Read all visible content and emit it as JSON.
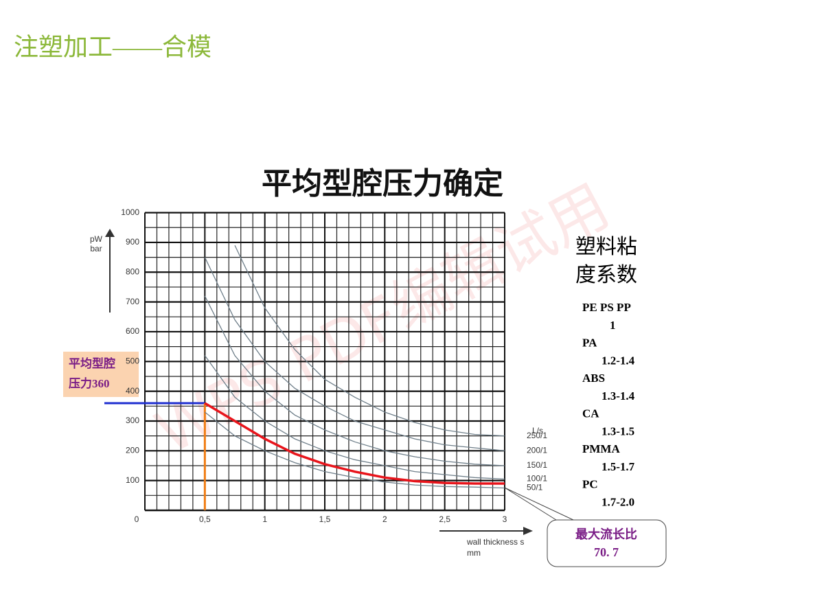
{
  "slide_title": "注塑加工——合模",
  "watermark": "WPS PDF编辑试用",
  "chart_data": {
    "type": "line",
    "title": "平均型腔压力确定",
    "y_label": [
      "pW",
      "bar"
    ],
    "x_label": [
      "wall thickness s",
      "mm"
    ],
    "series_header": "L/s",
    "x": [
      0.5,
      0.75,
      1,
      1.25,
      1.5,
      1.75,
      2,
      2.25,
      2.5,
      2.75,
      3
    ],
    "series": [
      {
        "name": "250/1",
        "color": "#6f7f8a",
        "values": [
          null,
          890,
          680,
          540,
          440,
          380,
          330,
          295,
          270,
          255,
          250
        ]
      },
      {
        "name": "200/1",
        "color": "#6f7f8a",
        "values": [
          850,
          640,
          500,
          410,
          350,
          300,
          270,
          240,
          220,
          210,
          200
        ]
      },
      {
        "name": "150/1",
        "color": "#6f7f8a",
        "values": [
          720,
          520,
          400,
          320,
          270,
          230,
          200,
          180,
          165,
          155,
          150
        ]
      },
      {
        "name": "100/1",
        "color": "#6f7f8a",
        "values": [
          520,
          380,
          300,
          240,
          200,
          170,
          150,
          130,
          120,
          110,
          105
        ]
      },
      {
        "name": "50/1",
        "color": "#6f7f8a",
        "values": [
          330,
          250,
          200,
          160,
          130,
          110,
          95,
          85,
          80,
          78,
          75
        ]
      },
      {
        "color": "#e8141b",
        "values": [
          360,
          300,
          240,
          190,
          155,
          130,
          110,
          98,
          92,
          90,
          90
        ]
      }
    ],
    "xlim": [
      0,
      3
    ],
    "ylim": [
      0,
      1000
    ],
    "xticks": [
      0,
      {
        "value": 0.5,
        "label": "0,5"
      },
      1,
      {
        "value": 1.5,
        "label": "1,5"
      },
      2,
      {
        "value": 2.5,
        "label": "2,5"
      },
      3
    ],
    "yticks": [
      100,
      200,
      300,
      400,
      500,
      600,
      700,
      800,
      900,
      1000
    ],
    "grid": true,
    "minor_grid": true,
    "annotations": {
      "pressure": 360,
      "pressure_color": "#1f2fd0",
      "thickness": 0.5,
      "thickness_color": "#f07c12",
      "pressure_box": [
        "平均型腔",
        "压力360"
      ],
      "flow_box": [
        "最大流长比",
        "70. 7"
      ]
    },
    "viscosity_title": [
      "塑料粘",
      "度系数"
    ],
    "materials": [
      {
        "name": "PE PS PP",
        "range": "1"
      },
      {
        "name": "PA",
        "range": "1.2-1.4"
      },
      {
        "name": "ABS",
        "range": "1.3-1.4"
      },
      {
        "name": "CA",
        "range": "1.3-1.5"
      },
      {
        "name": "PMMA",
        "range": "1.5-1.7"
      },
      {
        "name": "PC",
        "range": "1.7-2.0"
      }
    ]
  }
}
